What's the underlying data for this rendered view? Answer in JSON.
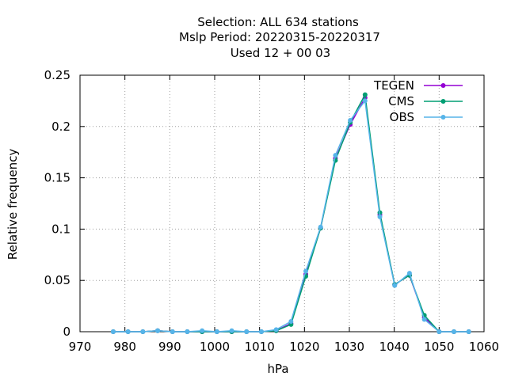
{
  "chart_data": {
    "type": "line",
    "title_lines": [
      "Selection: ALL    634 stations",
      "Mslp  Period: 20220315-20220317",
      "Used  12 + 00 03"
    ],
    "xlabel": "hPa",
    "ylabel": "Relative frequency",
    "xlim": [
      970,
      1060
    ],
    "ylim": [
      0,
      0.25
    ],
    "xticks": [
      970,
      980,
      990,
      1000,
      1010,
      1020,
      1030,
      1040,
      1050,
      1060
    ],
    "yticks": [
      0,
      0.05,
      0.1,
      0.15,
      0.2,
      0.25
    ],
    "ytick_labels": [
      "0",
      "0.05",
      "0.1",
      "0.15",
      "0.2",
      "0.25"
    ],
    "grid": true,
    "legend_position": "top-right",
    "x": [
      977.4,
      980.7,
      984.0,
      987.3,
      990.6,
      993.9,
      997.2,
      1000.5,
      1003.8,
      1007.1,
      1010.4,
      1013.7,
      1017.0,
      1020.3,
      1023.6,
      1026.9,
      1030.2,
      1033.5,
      1036.8,
      1040.1,
      1043.4,
      1046.7,
      1050.0,
      1053.3,
      1056.6
    ],
    "series": [
      {
        "name": "TEGEN",
        "color": "#9400d3",
        "values": [
          0,
          0,
          0,
          0.001,
          0,
          0,
          0,
          0,
          0,
          0,
          0,
          0.001,
          0.008,
          0.056,
          0.101,
          0.169,
          0.202,
          0.228,
          0.114,
          0.046,
          0.055,
          0.014,
          0,
          0,
          0
        ]
      },
      {
        "name": "CMS",
        "color": "#009e73",
        "values": [
          0,
          0,
          0,
          0.001,
          0,
          0,
          0,
          0,
          0,
          0,
          0,
          0.001,
          0.007,
          0.054,
          0.101,
          0.167,
          0.204,
          0.231,
          0.116,
          0.046,
          0.055,
          0.016,
          0,
          0,
          0
        ]
      },
      {
        "name": "OBS",
        "color": "#56b4e9",
        "values": [
          0,
          0,
          0,
          0.001,
          0,
          0,
          0.001,
          0,
          0.001,
          0,
          0,
          0.002,
          0.01,
          0.059,
          0.102,
          0.172,
          0.206,
          0.225,
          0.112,
          0.045,
          0.057,
          0.012,
          0,
          0,
          0
        ]
      }
    ]
  }
}
